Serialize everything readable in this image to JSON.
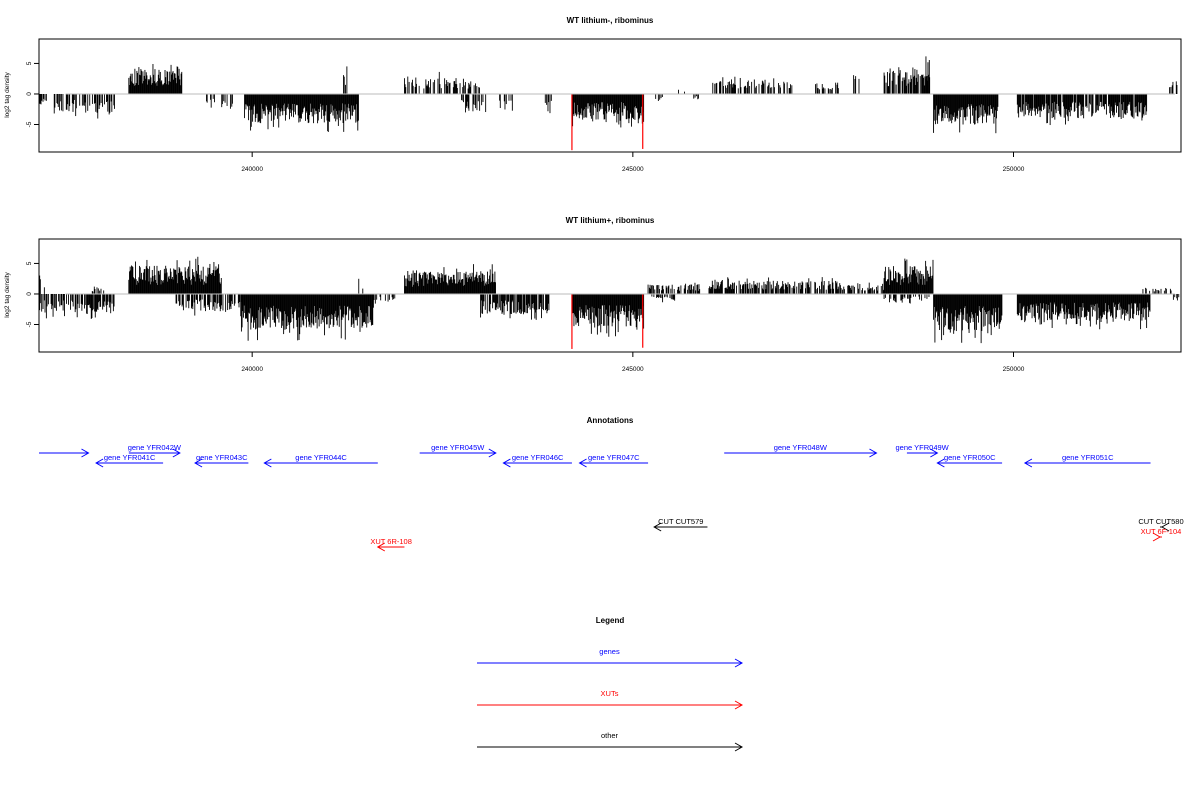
{
  "chart_data": [
    {
      "type": "bar",
      "title": "WT lithium-, ribominus",
      "xlabel": "",
      "ylabel": "log2 tag density",
      "xlim": [
        237200,
        252200
      ],
      "ylim": [
        -9.5,
        9
      ],
      "x_ticks": [
        240000,
        245000,
        250000
      ],
      "y_ticks": [
        -5,
        0,
        5
      ],
      "grid": false,
      "highlight_color": "#ff0000",
      "bar_color": "#000000",
      "highlights": [
        {
          "x": 244200,
          "value": -9.2
        },
        {
          "x": 245130,
          "value": -9.0
        }
      ],
      "segments": [
        {
          "from": 237200,
          "to": 237330,
          "density": 0.4,
          "value": -1.8,
          "seed": 11
        },
        {
          "from": 237400,
          "to": 238200,
          "density": 0.5,
          "value": -2.8,
          "seed": 12
        },
        {
          "from": 238380,
          "to": 239080,
          "density": 1.0,
          "value": 3.8,
          "seed": 13
        },
        {
          "from": 239400,
          "to": 239550,
          "density": 0.3,
          "value": -1.6,
          "seed": 14
        },
        {
          "from": 239600,
          "to": 239800,
          "density": 0.4,
          "value": -2.6,
          "seed": 15
        },
        {
          "from": 239900,
          "to": 241400,
          "density": 1.0,
          "value": -4.4,
          "seed": 16
        },
        {
          "from": 241200,
          "to": 241250,
          "density": 0.5,
          "value": 3.2,
          "seed": 17
        },
        {
          "from": 242000,
          "to": 243000,
          "density": 0.5,
          "value": 2.5,
          "seed": 18
        },
        {
          "from": 242750,
          "to": 243100,
          "density": 0.4,
          "value": -2.8,
          "seed": 19
        },
        {
          "from": 243250,
          "to": 243450,
          "density": 0.6,
          "value": -2.6,
          "seed": 20
        },
        {
          "from": 243850,
          "to": 243950,
          "density": 0.4,
          "value": -3.0,
          "seed": 21
        },
        {
          "from": 244200,
          "to": 245150,
          "density": 1.0,
          "value": -3.8,
          "seed": 22
        },
        {
          "from": 245300,
          "to": 245400,
          "density": 0.4,
          "value": -1.3,
          "seed": 23
        },
        {
          "from": 245600,
          "to": 245700,
          "density": 0.3,
          "value": 1.0,
          "seed": 24
        },
        {
          "from": 245800,
          "to": 245900,
          "density": 0.3,
          "value": -1.0,
          "seed": 25
        },
        {
          "from": 246050,
          "to": 247100,
          "density": 0.4,
          "value": 2.2,
          "seed": 26
        },
        {
          "from": 247400,
          "to": 247700,
          "density": 0.4,
          "value": 1.8,
          "seed": 27
        },
        {
          "from": 247900,
          "to": 248000,
          "density": 0.4,
          "value": 3.2,
          "seed": 28
        },
        {
          "from": 248300,
          "to": 248900,
          "density": 0.8,
          "value": 3.4,
          "seed": 29
        },
        {
          "from": 248850,
          "to": 248900,
          "density": 0.6,
          "value": 5.6,
          "seed": 30
        },
        {
          "from": 248950,
          "to": 249800,
          "density": 1.0,
          "value": -4.6,
          "seed": 31
        },
        {
          "from": 250050,
          "to": 251750,
          "density": 0.9,
          "value": -3.6,
          "seed": 32
        },
        {
          "from": 252050,
          "to": 252150,
          "density": 0.4,
          "value": 2.0,
          "seed": 33
        }
      ]
    },
    {
      "type": "bar",
      "title": "WT lithium+, ribominus",
      "xlabel": "",
      "ylabel": "log2 tag density",
      "xlim": [
        237200,
        252200
      ],
      "ylim": [
        -9.5,
        9
      ],
      "x_ticks": [
        240000,
        245000,
        250000
      ],
      "y_ticks": [
        -5,
        0,
        5
      ],
      "grid": false,
      "highlight_color": "#ff0000",
      "bar_color": "#000000",
      "highlights": [
        {
          "x": 244200,
          "value": -9.0
        },
        {
          "x": 245130,
          "value": -8.8
        }
      ],
      "segments": [
        {
          "from": 237200,
          "to": 238200,
          "density": 0.7,
          "value": -3.0,
          "seed": 41
        },
        {
          "from": 237200,
          "to": 237300,
          "density": 0.4,
          "value": 2.4,
          "seed": 42
        },
        {
          "from": 237900,
          "to": 238100,
          "density": 0.3,
          "value": 1.0,
          "seed": 43
        },
        {
          "from": 238380,
          "to": 239600,
          "density": 1.0,
          "value": 4.2,
          "seed": 44
        },
        {
          "from": 239000,
          "to": 239900,
          "density": 0.6,
          "value": -2.5,
          "seed": 45
        },
        {
          "from": 239850,
          "to": 241600,
          "density": 1.0,
          "value": -5.3,
          "seed": 46
        },
        {
          "from": 241400,
          "to": 241500,
          "density": 0.4,
          "value": 2.0,
          "seed": 47
        },
        {
          "from": 241600,
          "to": 241900,
          "density": 0.4,
          "value": -1.2,
          "seed": 48
        },
        {
          "from": 242000,
          "to": 243200,
          "density": 1.0,
          "value": 3.4,
          "seed": 49
        },
        {
          "from": 243000,
          "to": 243900,
          "density": 0.8,
          "value": -3.0,
          "seed": 50
        },
        {
          "from": 244200,
          "to": 245150,
          "density": 1.0,
          "value": -5.0,
          "seed": 51
        },
        {
          "from": 245200,
          "to": 245900,
          "density": 0.5,
          "value": 1.4,
          "seed": 52
        },
        {
          "from": 245250,
          "to": 245600,
          "density": 0.3,
          "value": -1.0,
          "seed": 53
        },
        {
          "from": 246000,
          "to": 247700,
          "density": 0.7,
          "value": 2.0,
          "seed": 54
        },
        {
          "from": 247700,
          "to": 248300,
          "density": 0.5,
          "value": 1.6,
          "seed": 55
        },
        {
          "from": 248300,
          "to": 248950,
          "density": 1.0,
          "value": 4.2,
          "seed": 56
        },
        {
          "from": 248300,
          "to": 248900,
          "density": 0.4,
          "value": -1.2,
          "seed": 57
        },
        {
          "from": 248950,
          "to": 249850,
          "density": 1.0,
          "value": -5.6,
          "seed": 58
        },
        {
          "from": 250050,
          "to": 251800,
          "density": 1.0,
          "value": -4.0,
          "seed": 59
        },
        {
          "from": 251700,
          "to": 252100,
          "density": 0.3,
          "value": 0.9,
          "seed": 60
        },
        {
          "from": 252100,
          "to": 252200,
          "density": 0.3,
          "value": -1.0,
          "seed": 61
        }
      ]
    }
  ],
  "annotations": {
    "title": "Annotations",
    "features": [
      {
        "label": "",
        "kind": "gene",
        "from": 237200,
        "to": 237850,
        "dir": "right",
        "row": 0
      },
      {
        "label": "gene YFR041C",
        "kind": "gene",
        "from": 237950,
        "to": 238830,
        "dir": "left",
        "row": 1
      },
      {
        "label": "gene YFR042W",
        "kind": "gene",
        "from": 238380,
        "to": 239050,
        "dir": "right",
        "row": 0
      },
      {
        "label": "gene YFR043C",
        "kind": "gene",
        "from": 239250,
        "to": 239950,
        "dir": "left",
        "row": 1
      },
      {
        "label": "gene YFR044C",
        "kind": "gene",
        "from": 240160,
        "to": 241650,
        "dir": "left",
        "row": 1
      },
      {
        "label": "gene YFR045W",
        "kind": "gene",
        "from": 242200,
        "to": 243200,
        "dir": "right",
        "row": 0
      },
      {
        "label": "gene YFR046C",
        "kind": "gene",
        "from": 243300,
        "to": 244200,
        "dir": "left",
        "row": 1
      },
      {
        "label": "gene YFR047C",
        "kind": "gene",
        "from": 244300,
        "to": 245200,
        "dir": "left",
        "row": 1
      },
      {
        "label": "gene YFR048W",
        "kind": "gene",
        "from": 246200,
        "to": 248200,
        "dir": "right",
        "row": 0
      },
      {
        "label": "gene YFR049W",
        "kind": "gene",
        "from": 248600,
        "to": 249000,
        "dir": "right",
        "row": 0
      },
      {
        "label": "gene YFR050C",
        "kind": "gene",
        "from": 249000,
        "to": 249850,
        "dir": "left",
        "row": 1
      },
      {
        "label": "gene YFR051C",
        "kind": "gene",
        "from": 250150,
        "to": 251800,
        "dir": "left",
        "row": 1
      },
      {
        "label": "CUT CUT579",
        "kind": "other",
        "from": 245280,
        "to": 245980,
        "dir": "left",
        "row": 2
      },
      {
        "label": "CUT CUT580",
        "kind": "other",
        "from": 251950,
        "to": 252150,
        "dir": "left",
        "row": 2
      },
      {
        "label": "XUT 6R-108",
        "kind": "xut",
        "from": 241650,
        "to": 242000,
        "dir": "left",
        "row": 4
      },
      {
        "label": "XUT 6F-104",
        "kind": "xut",
        "from": 251950,
        "to": 252500,
        "dir": "right",
        "row": 3
      }
    ]
  },
  "legend": {
    "title": "Legend",
    "items": [
      {
        "label": "genes",
        "color": "#0000ff"
      },
      {
        "label": "XUTs",
        "color": "#ff0000"
      },
      {
        "label": "other",
        "color": "#000000"
      }
    ]
  },
  "colors": {
    "gene": "#0000ff",
    "xut": "#ff0000",
    "other": "#000000"
  }
}
